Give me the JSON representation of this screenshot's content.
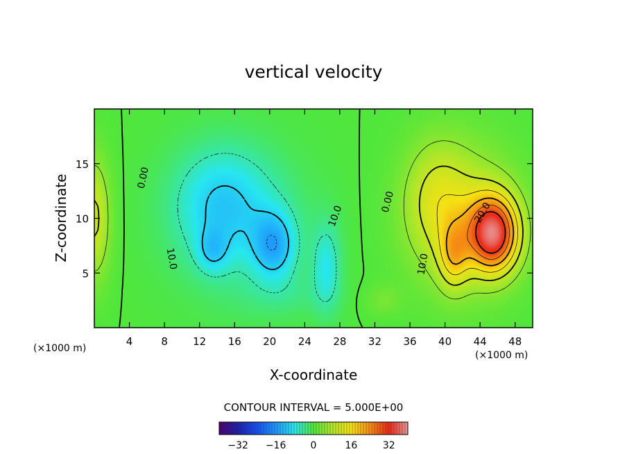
{
  "chart_data": {
    "type": "heatmap",
    "title": "vertical velocity",
    "xlabel": "X-coordinate",
    "ylabel": "Z-coordinate",
    "x_unit_label_left": "(×1000 m)",
    "x_unit_label_right": "(×1000 m)",
    "xlim": [
      0,
      50
    ],
    "ylim": [
      0,
      20
    ],
    "x_ticks": [
      4,
      8,
      12,
      16,
      20,
      24,
      28,
      32,
      36,
      40,
      44,
      48
    ],
    "y_ticks": [
      5,
      10,
      15
    ],
    "contour_interval_text": "CONTOUR INTERVAL = 5.000E+00",
    "contour_labels": [
      {
        "text": "0.00",
        "x": 5.6,
        "y": 13.7,
        "angle": -78
      },
      {
        "text": "10.0",
        "x": 8.8,
        "y": 6.3,
        "angle": 80
      },
      {
        "text": "10.0",
        "x": 27.5,
        "y": 10.2,
        "angle": -70
      },
      {
        "text": "0.00",
        "x": 33.5,
        "y": 11.5,
        "angle": -75
      },
      {
        "text": "10.0",
        "x": 37.5,
        "y": 5.8,
        "angle": -80
      },
      {
        "text": "20.0",
        "x": 44.3,
        "y": 10.5,
        "angle": -60
      }
    ],
    "colorbar": {
      "min": -40,
      "max": 40,
      "tick_values": [
        -32,
        -16,
        0,
        16,
        32
      ],
      "tick_labels": [
        "−32",
        "−16",
        "0",
        "16",
        "32"
      ]
    },
    "features": [
      {
        "kind": "updraft",
        "center": [
          45.5,
          8.5
        ],
        "peak": 32
      },
      {
        "kind": "updraft",
        "center": [
          41.0,
          6.8
        ],
        "peak": 26
      },
      {
        "kind": "updraft",
        "center": [
          0.0,
          10.0
        ],
        "peak": 11
      },
      {
        "kind": "downdraft",
        "center": [
          14.0,
          11.0
        ],
        "peak": -14
      },
      {
        "kind": "downdraft",
        "center": [
          20.5,
          7.5
        ],
        "peak": -19
      },
      {
        "kind": "downdraft",
        "center": [
          13.5,
          7.0
        ],
        "peak": -13
      },
      {
        "kind": "downdraft",
        "center": [
          26.5,
          5.5
        ],
        "peak": -9
      }
    ]
  },
  "colors": {
    "background": "#ffffff",
    "axis": "#000000"
  }
}
